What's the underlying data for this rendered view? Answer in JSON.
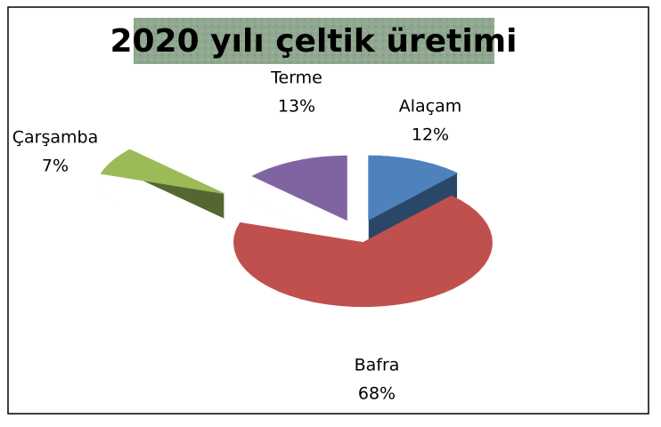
{
  "chart_data": {
    "type": "pie3d",
    "title": "2020 yılı çeltik üretimi",
    "categories": [
      "Alaçam",
      "Bafra",
      "Çarşamba",
      "Terme"
    ],
    "values": [
      12,
      68,
      7,
      13
    ],
    "value_labels": [
      "12%",
      "68%",
      "7%",
      "13%"
    ],
    "colors": [
      "#4f81bd",
      "#c0504d",
      "#9bbb59",
      "#8064a2"
    ]
  }
}
